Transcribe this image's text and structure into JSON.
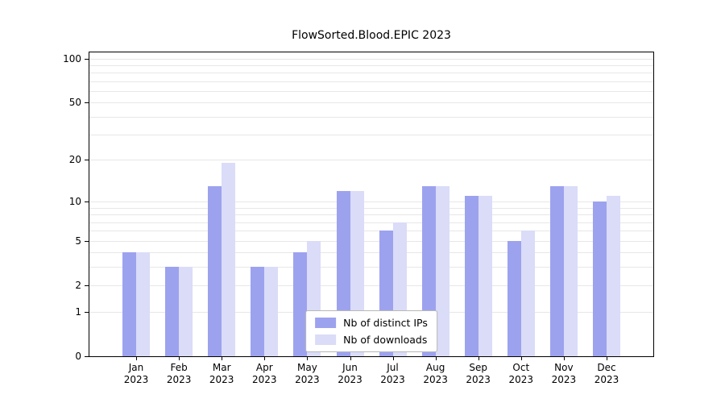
{
  "title": "FlowSorted.Blood.EPIC 2023",
  "colors": {
    "ips": "#9da2ee",
    "downloads": "#dadcf8",
    "grid": "#e7e7e7",
    "axis": "#000000"
  },
  "legend": {
    "items": [
      {
        "label": "Nb of distinct IPs"
      },
      {
        "label": "Nb of downloads"
      }
    ]
  },
  "chart_data": {
    "type": "bar",
    "title": "FlowSorted.Blood.EPIC 2023",
    "categories": [
      "Jan 2023",
      "Feb 2023",
      "Mar 2023",
      "Apr 2023",
      "May 2023",
      "Jun 2023",
      "Jul 2023",
      "Aug 2023",
      "Sep 2023",
      "Oct 2023",
      "Nov 2023",
      "Dec 2023"
    ],
    "series": [
      {
        "name": "Nb of distinct IPs",
        "values": [
          4,
          3,
          13,
          3,
          4,
          12,
          6,
          13,
          11,
          5,
          13,
          10
        ]
      },
      {
        "name": "Nb of downloads",
        "values": [
          4,
          3,
          19,
          3,
          5,
          12,
          7,
          13,
          11,
          6,
          13,
          11
        ]
      }
    ],
    "yscale": "log10(1+v)",
    "yticks": [
      0,
      1,
      2,
      5,
      10,
      20,
      50,
      100
    ],
    "minor_gridlines": [
      3,
      4,
      6,
      7,
      8,
      9,
      30,
      40,
      60,
      70,
      80,
      90
    ],
    "ylim": [
      0,
      110
    ],
    "xlabel": "",
    "ylabel": "",
    "grid": true,
    "legend_position": "lower center"
  }
}
